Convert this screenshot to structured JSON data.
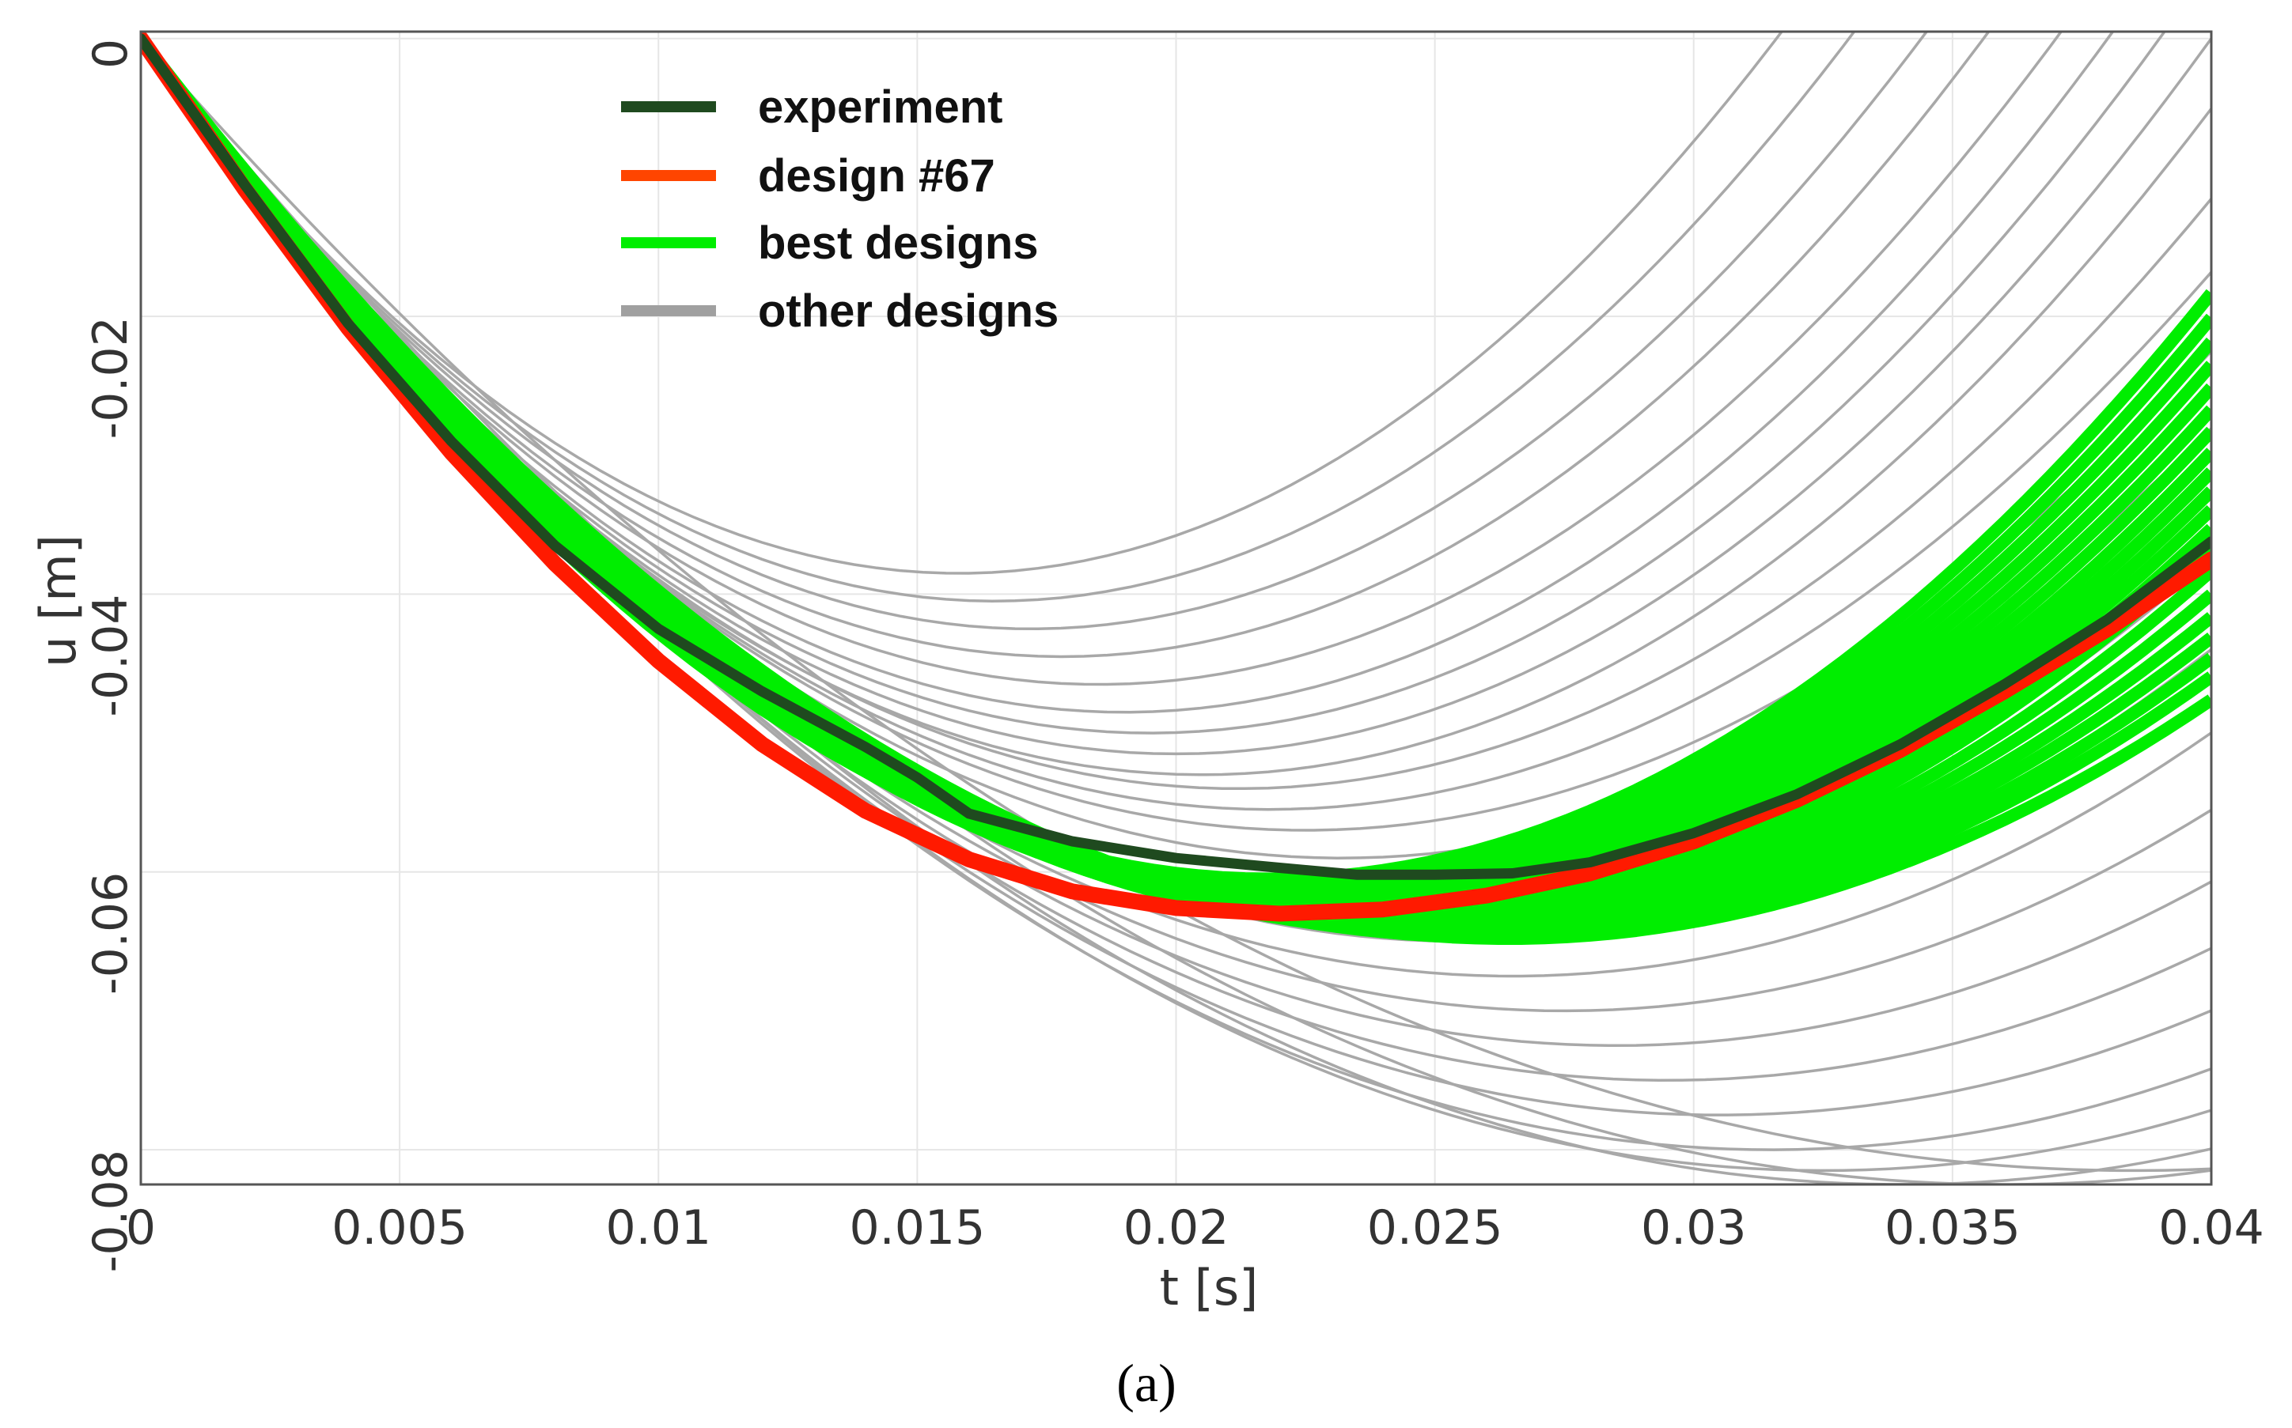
{
  "chart_data": {
    "type": "line",
    "title": "",
    "caption": "(a)",
    "xlabel": "t [s]",
    "ylabel": "u [m]",
    "xlim": [
      0,
      0.04
    ],
    "ylim": [
      -0.0825,
      0.0005
    ],
    "xticks": [
      0,
      0.005,
      0.01,
      0.015,
      0.02,
      0.025,
      0.03,
      0.035,
      0.04
    ],
    "xtick_labels": [
      "0",
      "0.005",
      "0.01",
      "0.015",
      "0.02",
      "0.025",
      "0.03",
      "0.035",
      "0.04"
    ],
    "yticks": [
      0,
      -0.02,
      -0.04,
      -0.06,
      -0.08
    ],
    "ytick_labels": [
      "0",
      "-0.02",
      "-0.04",
      "-0.06",
      "-0.08"
    ],
    "grid": true,
    "legend_position": "top-left",
    "legend": [
      {
        "label": "experiment",
        "color": "#1f4a1f"
      },
      {
        "label": "design #67",
        "color": "#ff4500"
      },
      {
        "label": "best designs",
        "color": "#00ee00"
      },
      {
        "label": "other designs",
        "color": "#a0a0a0"
      }
    ],
    "series": [
      {
        "name": "other designs",
        "color": "#a8a8a8",
        "note": "family of parabolic trajectories u(t) = -2*d*t/tm + d*(t/tm)^2, minimum value -d reached at time tm",
        "params": [
          {
            "tm": 0.0158,
            "d": 0.0385
          },
          {
            "tm": 0.0165,
            "d": 0.0405
          },
          {
            "tm": 0.0172,
            "d": 0.0425
          },
          {
            "tm": 0.0178,
            "d": 0.0445
          },
          {
            "tm": 0.0185,
            "d": 0.0465
          },
          {
            "tm": 0.019,
            "d": 0.0485
          },
          {
            "tm": 0.0195,
            "d": 0.05
          },
          {
            "tm": 0.02,
            "d": 0.0515
          },
          {
            "tm": 0.0205,
            "d": 0.053
          },
          {
            "tm": 0.0212,
            "d": 0.054
          },
          {
            "tm": 0.0218,
            "d": 0.0555
          },
          {
            "tm": 0.0225,
            "d": 0.057
          },
          {
            "tm": 0.0232,
            "d": 0.059
          },
          {
            "tm": 0.0245,
            "d": 0.0625
          },
          {
            "tm": 0.0255,
            "d": 0.065
          },
          {
            "tm": 0.0265,
            "d": 0.0675
          },
          {
            "tm": 0.0275,
            "d": 0.07
          },
          {
            "tm": 0.0285,
            "d": 0.0725
          },
          {
            "tm": 0.0295,
            "d": 0.075
          },
          {
            "tm": 0.0305,
            "d": 0.0775
          },
          {
            "tm": 0.0315,
            "d": 0.08
          },
          {
            "tm": 0.0325,
            "d": 0.0815
          },
          {
            "tm": 0.034,
            "d": 0.0825
          },
          {
            "tm": 0.036,
            "d": 0.0825
          },
          {
            "tm": 0.0385,
            "d": 0.0815
          }
        ]
      },
      {
        "name": "best designs",
        "color": "#00ee00",
        "note": "band of parabolic trajectories, same form as other designs",
        "params": [
          {
            "tm": 0.0218,
            "d": 0.0605
          },
          {
            "tm": 0.022,
            "d": 0.0608
          },
          {
            "tm": 0.0222,
            "d": 0.0611
          },
          {
            "tm": 0.0224,
            "d": 0.0614
          },
          {
            "tm": 0.0226,
            "d": 0.0617
          },
          {
            "tm": 0.0228,
            "d": 0.062
          },
          {
            "tm": 0.023,
            "d": 0.0623
          },
          {
            "tm": 0.0232,
            "d": 0.0626
          },
          {
            "tm": 0.0234,
            "d": 0.0628
          },
          {
            "tm": 0.0236,
            "d": 0.063
          },
          {
            "tm": 0.0238,
            "d": 0.0632
          },
          {
            "tm": 0.024,
            "d": 0.0635
          },
          {
            "tm": 0.0242,
            "d": 0.0637
          },
          {
            "tm": 0.0245,
            "d": 0.0639
          },
          {
            "tm": 0.0248,
            "d": 0.0641
          },
          {
            "tm": 0.0251,
            "d": 0.0643
          },
          {
            "tm": 0.0254,
            "d": 0.0644
          },
          {
            "tm": 0.0257,
            "d": 0.0646
          },
          {
            "tm": 0.026,
            "d": 0.0647
          },
          {
            "tm": 0.0264,
            "d": 0.0648
          }
        ]
      },
      {
        "name": "design #67",
        "color": "#ff1a00",
        "x": [
          0,
          0.002,
          0.004,
          0.006,
          0.008,
          0.01,
          0.012,
          0.014,
          0.016,
          0.018,
          0.02,
          0.022,
          0.024,
          0.026,
          0.028,
          0.03,
          0.032,
          0.034,
          0.036,
          0.038,
          0.04
        ],
        "y": [
          0,
          -0.0108,
          -0.0208,
          -0.0298,
          -0.0378,
          -0.0448,
          -0.0508,
          -0.0556,
          -0.0591,
          -0.0614,
          -0.0626,
          -0.063,
          -0.0627,
          -0.0617,
          -0.0601,
          -0.0578,
          -0.0548,
          -0.0512,
          -0.047,
          -0.0425,
          -0.0375
        ]
      },
      {
        "name": "experiment",
        "color": "#1f4a1f",
        "x": [
          0,
          0.002,
          0.004,
          0.006,
          0.008,
          0.01,
          0.012,
          0.014,
          0.015,
          0.016,
          0.017,
          0.018,
          0.02,
          0.022,
          0.0235,
          0.025,
          0.0265,
          0.028,
          0.03,
          0.032,
          0.034,
          0.036,
          0.038,
          0.04
        ],
        "y": [
          0,
          -0.0105,
          -0.0205,
          -0.029,
          -0.0365,
          -0.0425,
          -0.047,
          -0.051,
          -0.0532,
          -0.0558,
          -0.0568,
          -0.0578,
          -0.059,
          -0.0597,
          -0.0602,
          -0.0602,
          -0.0601,
          -0.0593,
          -0.0572,
          -0.0544,
          -0.0508,
          -0.0465,
          -0.0418,
          -0.0362
        ]
      }
    ]
  }
}
